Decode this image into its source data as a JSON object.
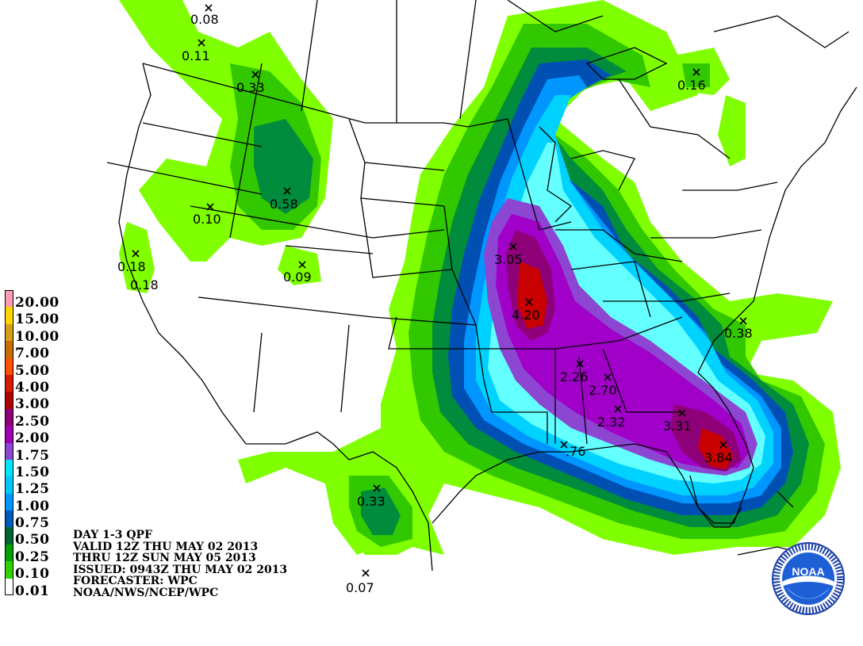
{
  "legend": {
    "items": [
      {
        "label": "20.00",
        "color": "#ff9cb4"
      },
      {
        "label": "15.00",
        "color": "#ffd700"
      },
      {
        "label": "10.00",
        "color": "#d4a017"
      },
      {
        "label": "7.00",
        "color": "#c66e00"
      },
      {
        "label": "5.00",
        "color": "#ff5000"
      },
      {
        "label": "4.00",
        "color": "#d81a00"
      },
      {
        "label": "3.00",
        "color": "#b10000"
      },
      {
        "label": "2.50",
        "color": "#8e0078"
      },
      {
        "label": "2.00",
        "color": "#a000b4"
      },
      {
        "label": "1.75",
        "color": "#8c46d2"
      },
      {
        "label": "1.50",
        "color": "#00e6ff"
      },
      {
        "label": "1.25",
        "color": "#00c8ff"
      },
      {
        "label": "1.00",
        "color": "#0096ff"
      },
      {
        "label": "0.75",
        "color": "#005abe"
      },
      {
        "label": "0.50",
        "color": "#006432"
      },
      {
        "label": "0.25",
        "color": "#00a000"
      },
      {
        "label": "0.10",
        "color": "#32d200"
      },
      {
        "label": "0.01",
        "color": "#ffffff"
      }
    ]
  },
  "info": {
    "line1": "DAY 1-3 QPF",
    "line2": "VALID 12Z THU MAY 02 2013",
    "line3": "THRU 12Z SUN MAY 05 2013",
    "line4": "ISSUED: 0943Z THU MAY 02 2013",
    "line5": "FORECASTER: WPC",
    "line6": "NOAA/NWS/NCEP/WPC"
  },
  "stations": [
    {
      "value": "0.08"
    },
    {
      "value": "0.11"
    },
    {
      "value": "0.33"
    },
    {
      "value": "0.16"
    },
    {
      "value": "0.58"
    },
    {
      "value": "0.10"
    },
    {
      "value": "0.18"
    },
    {
      "value": "0.18"
    },
    {
      "value": "0.09"
    },
    {
      "value": "3.05"
    },
    {
      "value": "4.20"
    },
    {
      "value": "0.38"
    },
    {
      "value": "2.26"
    },
    {
      "value": "2.70"
    },
    {
      "value": "2.32"
    },
    {
      "value": "3.31"
    },
    {
      "value": "3.84"
    },
    {
      "value": ".76"
    },
    {
      "value": "0.33"
    },
    {
      "value": "0.07"
    }
  ],
  "logo": {
    "text": "NOAA"
  }
}
